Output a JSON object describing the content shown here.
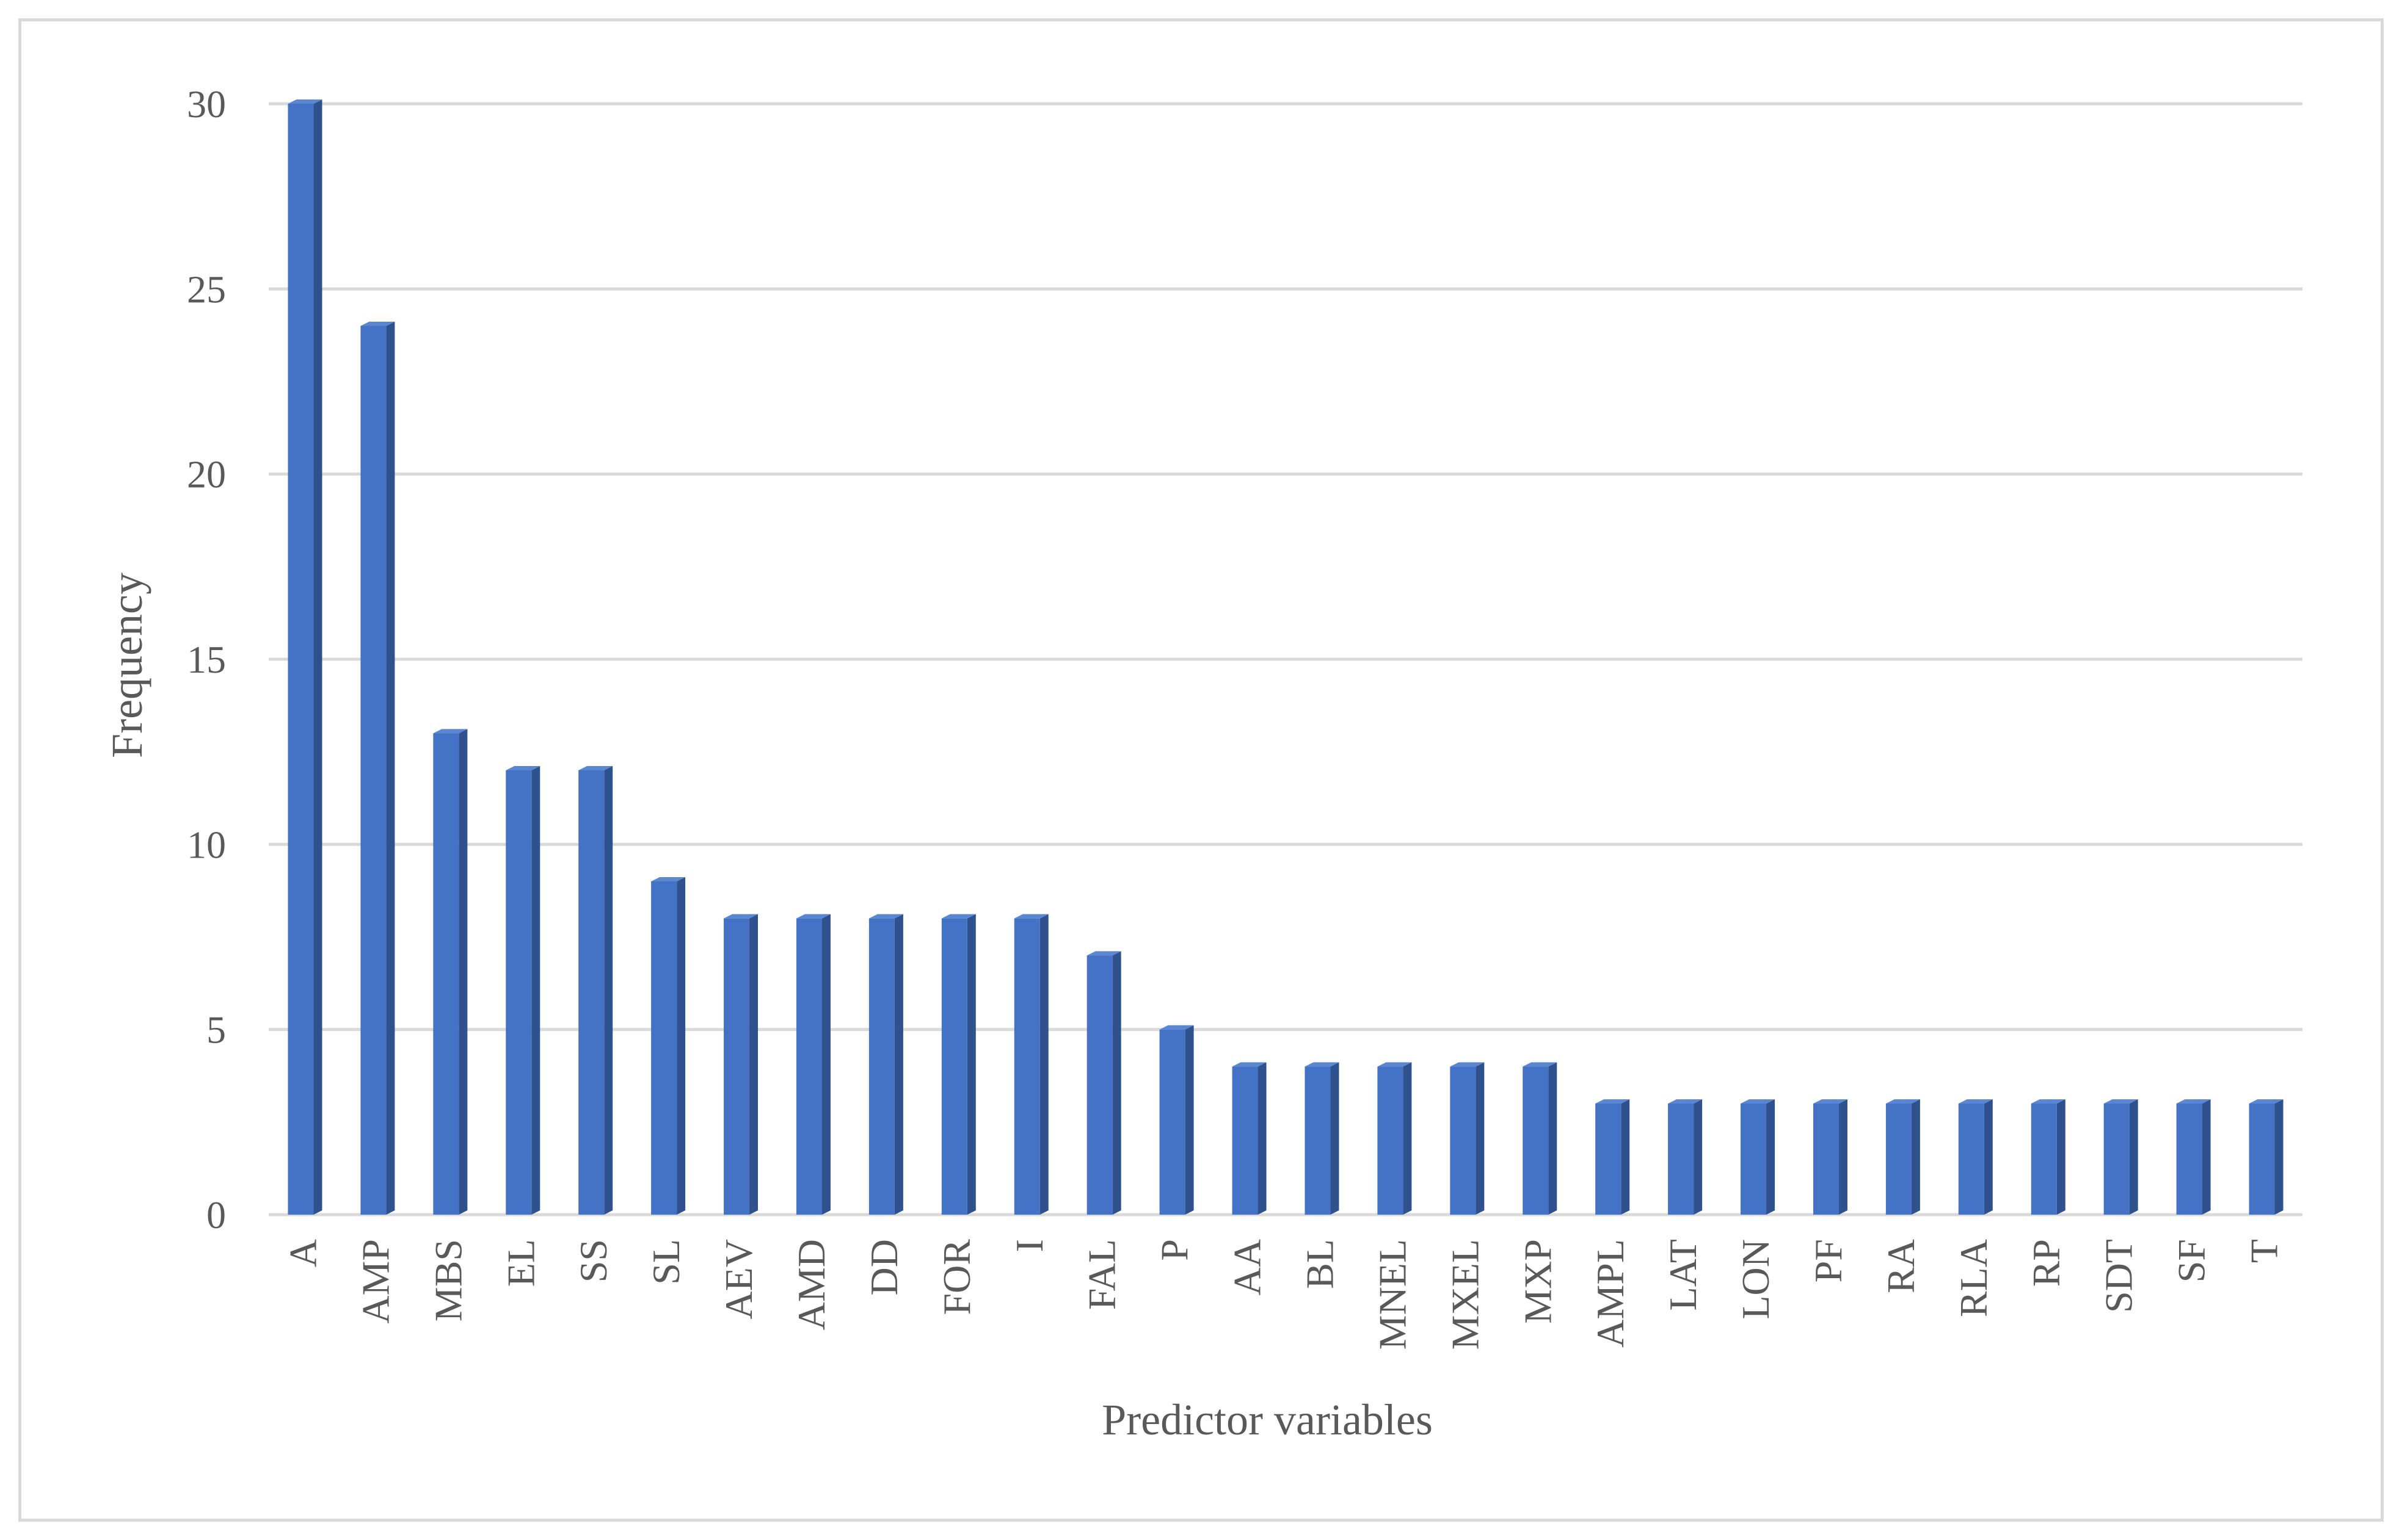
{
  "chart_data": {
    "type": "bar",
    "title": "",
    "xlabel": "Predictor variables",
    "ylabel": "Frequency",
    "ylim": [
      0,
      30
    ],
    "yticks": [
      0,
      5,
      10,
      15,
      20,
      25,
      30
    ],
    "grid": true,
    "legend": "none",
    "bar_color": "#4472c4",
    "categories": [
      "A",
      "AMP",
      "MBS",
      "EL",
      "SS",
      "SL",
      "AEV",
      "AMD",
      "DD",
      "FOR",
      "I",
      "FAL",
      "P",
      "AA",
      "BL",
      "MNEL",
      "MXEL",
      "MXP",
      "AMPL",
      "LAT",
      "LON",
      "PF",
      "RA",
      "RLA",
      "RP",
      "SDT",
      "SF",
      "T"
    ],
    "values": [
      30,
      24,
      13,
      12,
      12,
      9,
      8,
      8,
      8,
      8,
      8,
      7,
      5,
      4,
      4,
      4,
      4,
      4,
      3,
      3,
      3,
      3,
      3,
      3,
      3,
      3,
      3,
      3
    ]
  }
}
